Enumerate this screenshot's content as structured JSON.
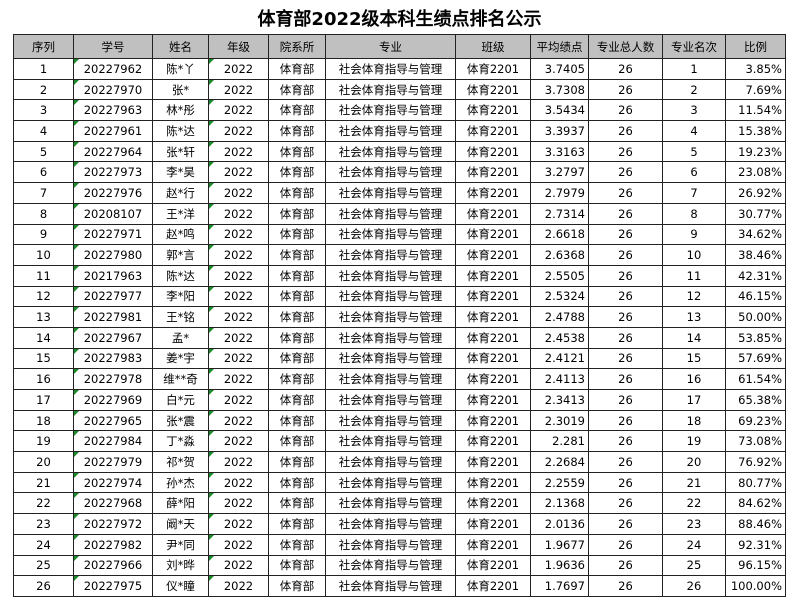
{
  "title": "体育部2022级本科生绩点排名公示",
  "headers": [
    "序列",
    "学号",
    "姓名",
    "年级",
    "院系所",
    "专业",
    "班级",
    "平均绩点",
    "专业总人数",
    "专业名次",
    "比例"
  ],
  "rows": [
    [
      "1",
      "20227962",
      "陈*丫",
      "2022",
      "体育部",
      "社会体育指导与管理",
      "体育2201",
      "3.7405",
      "26",
      "1",
      "3.85%"
    ],
    [
      "2",
      "20227970",
      "张*",
      "2022",
      "体育部",
      "社会体育指导与管理",
      "体育2201",
      "3.7308",
      "26",
      "2",
      "7.69%"
    ],
    [
      "3",
      "20227963",
      "林*彤",
      "2022",
      "体育部",
      "社会体育指导与管理",
      "体育2201",
      "3.5434",
      "26",
      "3",
      "11.54%"
    ],
    [
      "4",
      "20227961",
      "陈*达",
      "2022",
      "体育部",
      "社会体育指导与管理",
      "体育2201",
      "3.3937",
      "26",
      "4",
      "15.38%"
    ],
    [
      "5",
      "20227964",
      "张*轩",
      "2022",
      "体育部",
      "社会体育指导与管理",
      "体育2201",
      "3.3163",
      "26",
      "5",
      "19.23%"
    ],
    [
      "6",
      "20227973",
      "李*昊",
      "2022",
      "体育部",
      "社会体育指导与管理",
      "体育2201",
      "3.2797",
      "26",
      "6",
      "23.08%"
    ],
    [
      "7",
      "20227976",
      "赵*行",
      "2022",
      "体育部",
      "社会体育指导与管理",
      "体育2201",
      "2.7979",
      "26",
      "7",
      "26.92%"
    ],
    [
      "8",
      "20208107",
      "王*洋",
      "2022",
      "体育部",
      "社会体育指导与管理",
      "体育2201",
      "2.7314",
      "26",
      "8",
      "30.77%"
    ],
    [
      "9",
      "20227971",
      "赵*鸣",
      "2022",
      "体育部",
      "社会体育指导与管理",
      "体育2201",
      "2.6618",
      "26",
      "9",
      "34.62%"
    ],
    [
      "10",
      "20227980",
      "郭*言",
      "2022",
      "体育部",
      "社会体育指导与管理",
      "体育2201",
      "2.6368",
      "26",
      "10",
      "38.46%"
    ],
    [
      "11",
      "20217963",
      "陈*达",
      "2022",
      "体育部",
      "社会体育指导与管理",
      "体育2201",
      "2.5505",
      "26",
      "11",
      "42.31%"
    ],
    [
      "12",
      "20227977",
      "李*阳",
      "2022",
      "体育部",
      "社会体育指导与管理",
      "体育2201",
      "2.5324",
      "26",
      "12",
      "46.15%"
    ],
    [
      "13",
      "20227981",
      "王*铭",
      "2022",
      "体育部",
      "社会体育指导与管理",
      "体育2201",
      "2.4788",
      "26",
      "13",
      "50.00%"
    ],
    [
      "14",
      "20227967",
      "孟*",
      "2022",
      "体育部",
      "社会体育指导与管理",
      "体育2201",
      "2.4538",
      "26",
      "14",
      "53.85%"
    ],
    [
      "15",
      "20227983",
      "姜*宇",
      "2022",
      "体育部",
      "社会体育指导与管理",
      "体育2201",
      "2.4121",
      "26",
      "15",
      "57.69%"
    ],
    [
      "16",
      "20227978",
      "维**奇",
      "2022",
      "体育部",
      "社会体育指导与管理",
      "体育2201",
      "2.4113",
      "26",
      "16",
      "61.54%"
    ],
    [
      "17",
      "20227969",
      "白*元",
      "2022",
      "体育部",
      "社会体育指导与管理",
      "体育2201",
      "2.3413",
      "26",
      "17",
      "65.38%"
    ],
    [
      "18",
      "20227965",
      "张*震",
      "2022",
      "体育部",
      "社会体育指导与管理",
      "体育2201",
      "2.3019",
      "26",
      "18",
      "69.23%"
    ],
    [
      "19",
      "20227984",
      "丁*淼",
      "2022",
      "体育部",
      "社会体育指导与管理",
      "体育2201",
      "2.281",
      "26",
      "19",
      "73.08%"
    ],
    [
      "20",
      "20227979",
      "祁*贺",
      "2022",
      "体育部",
      "社会体育指导与管理",
      "体育2201",
      "2.2684",
      "26",
      "20",
      "76.92%"
    ],
    [
      "21",
      "20227974",
      "孙*杰",
      "2022",
      "体育部",
      "社会体育指导与管理",
      "体育2201",
      "2.2559",
      "26",
      "21",
      "80.77%"
    ],
    [
      "22",
      "20227968",
      "薛*阳",
      "2022",
      "体育部",
      "社会体育指导与管理",
      "体育2201",
      "2.1368",
      "26",
      "22",
      "84.62%"
    ],
    [
      "23",
      "20227972",
      "阚*天",
      "2022",
      "体育部",
      "社会体育指导与管理",
      "体育2201",
      "2.0136",
      "26",
      "23",
      "88.46%"
    ],
    [
      "24",
      "20227982",
      "尹*同",
      "2022",
      "体育部",
      "社会体育指导与管理",
      "体育2201",
      "1.9677",
      "26",
      "24",
      "92.31%"
    ],
    [
      "25",
      "20227966",
      "刘*晔",
      "2022",
      "体育部",
      "社会体育指导与管理",
      "体育2201",
      "1.9636",
      "26",
      "25",
      "96.15%"
    ],
    [
      "26",
      "20227975",
      "仪*瞳",
      "2022",
      "体育部",
      "社会体育指导与管理",
      "体育2201",
      "1.7697",
      "26",
      "26",
      "100.00%"
    ]
  ],
  "colors": {
    "header_bg": "#c0c0c0",
    "text_marker": "#1a8a2a"
  }
}
